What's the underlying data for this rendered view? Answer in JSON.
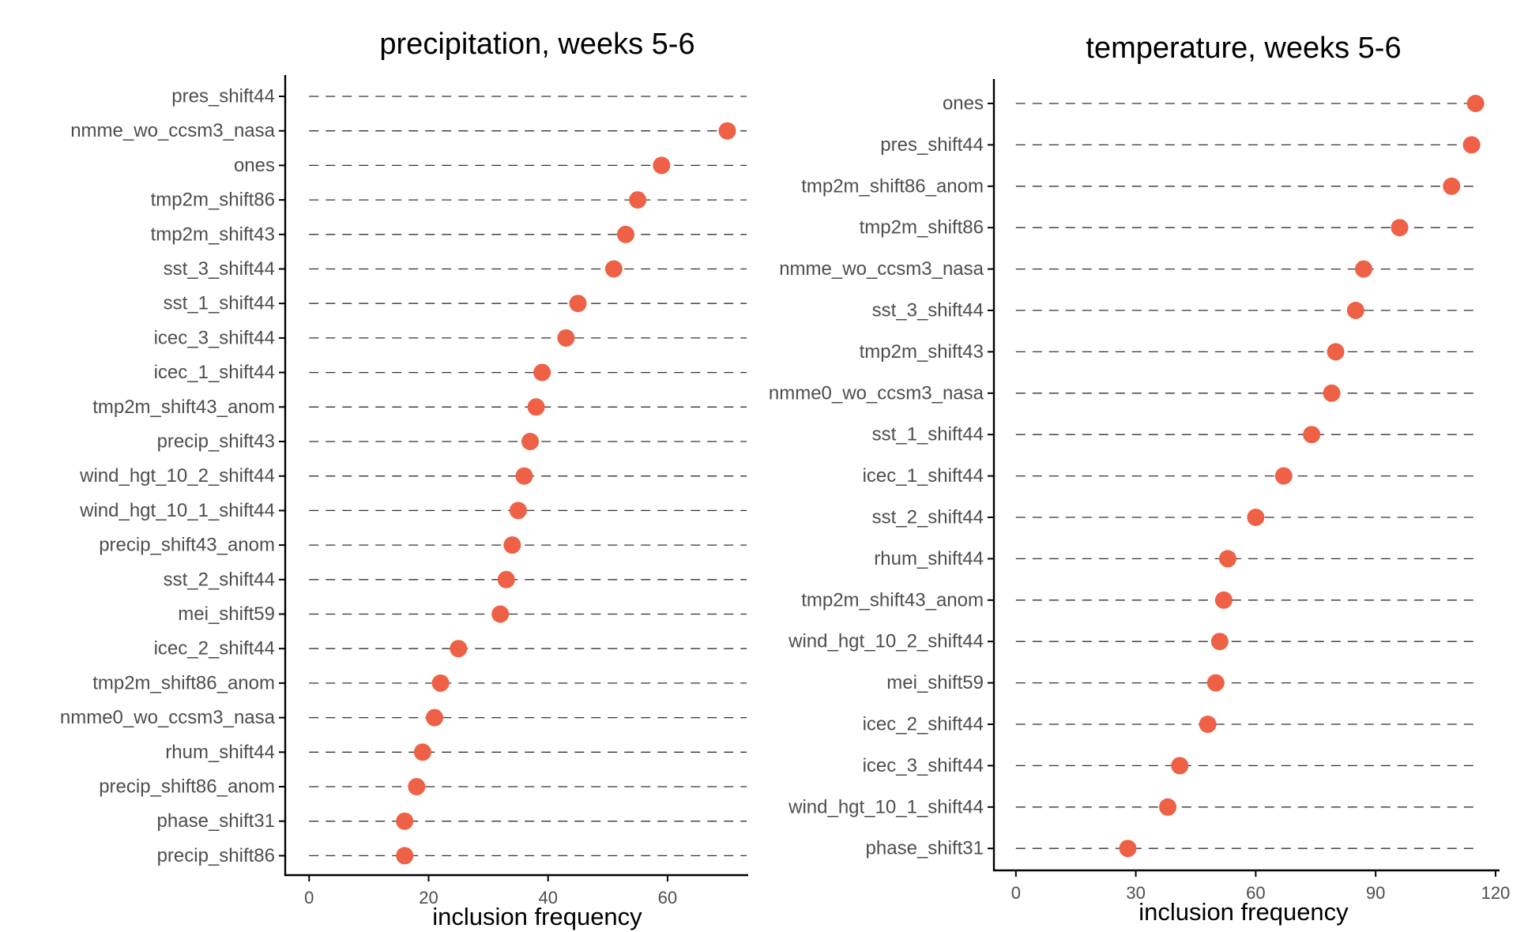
{
  "chart_data": [
    {
      "type": "scatter",
      "title": "precipitation, weeks 5-6",
      "xlabel": "inclusion frequency",
      "ylabel": "",
      "xlim": [
        -4,
        73.5
      ],
      "xticks": [
        0,
        20,
        40,
        60
      ],
      "grid": false,
      "point_color": "#EE6146",
      "categories": [
        "pres_shift44",
        "nmme_wo_ccsm3_nasa",
        "ones",
        "tmp2m_shift86",
        "tmp2m_shift43",
        "sst_3_shift44",
        "sst_1_shift44",
        "icec_3_shift44",
        "icec_1_shift44",
        "tmp2m_shift43_anom",
        "precip_shift43",
        "wind_hgt_10_2_shift44",
        "wind_hgt_10_1_shift44",
        "precip_shift43_anom",
        "sst_2_shift44",
        "mei_shift59",
        "icec_2_shift44",
        "tmp2m_shift86_anom",
        "nmme0_wo_ccsm3_nasa",
        "rhum_shift44",
        "precip_shift86_anom",
        "phase_shift31",
        "precip_shift86"
      ],
      "values": [
        null,
        70,
        59,
        55,
        53,
        51,
        45,
        43,
        39,
        38,
        37,
        36,
        35,
        34,
        33,
        32,
        25,
        22,
        21,
        19,
        18,
        16,
        16
      ]
    },
    {
      "type": "scatter",
      "title": "temperature, weeks 5-6",
      "xlabel": "inclusion frequency",
      "ylabel": "",
      "xlim": [
        -5.5,
        121
      ],
      "xticks": [
        0,
        30,
        60,
        90,
        120
      ],
      "grid": false,
      "point_color": "#EE6146",
      "categories": [
        "ones",
        "pres_shift44",
        "tmp2m_shift86_anom",
        "tmp2m_shift86",
        "nmme_wo_ccsm3_nasa",
        "sst_3_shift44",
        "tmp2m_shift43",
        "nmme0_wo_ccsm3_nasa",
        "sst_1_shift44",
        "icec_1_shift44",
        "sst_2_shift44",
        "rhum_shift44",
        "tmp2m_shift43_anom",
        "wind_hgt_10_2_shift44",
        "mei_shift59",
        "icec_2_shift44",
        "icec_3_shift44",
        "wind_hgt_10_1_shift44",
        "phase_shift31"
      ],
      "values": [
        115,
        114,
        109,
        96,
        87,
        85,
        80,
        79,
        74,
        67,
        60,
        53,
        52,
        51,
        50,
        48,
        41,
        38,
        28
      ]
    }
  ]
}
